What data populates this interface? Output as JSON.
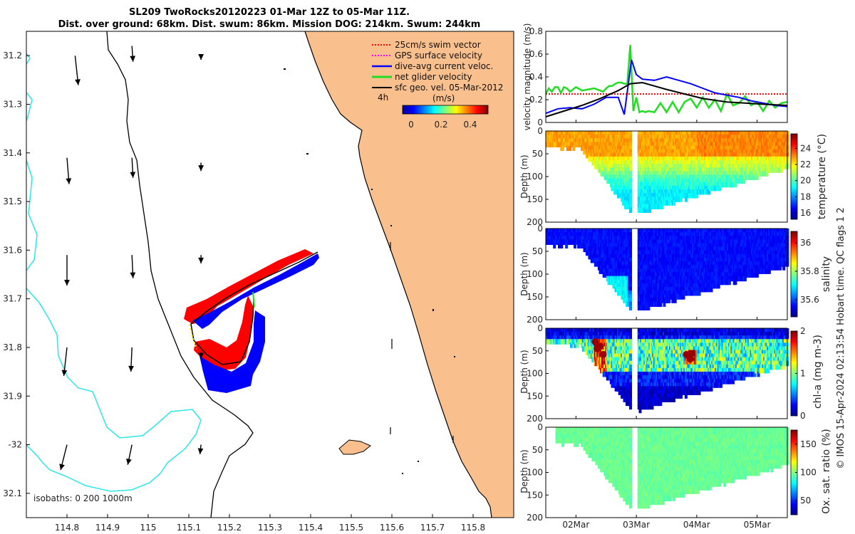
{
  "header": {
    "title_line1": "SL209 TwoRocks20120223 01-Mar 12Z to 05-Mar 11Z.",
    "title_line2": "Dist. over ground: 68km. Dist. swum: 86km. Mission DOG: 214km. Swum: 244km"
  },
  "footer": {
    "credit": "© IMOS 15-Apr-2024 02:13:54 Hobart time. QC flags 1  2"
  },
  "colors": {
    "land": "#f9c08e",
    "isobath": "#2ee6e6",
    "coast": "#000000",
    "track_red": "#ff0000",
    "track_blue": "#0000ff",
    "net_green": "#22dd22"
  },
  "chart_data": [
    {
      "type": "map",
      "xlim": [
        114.7,
        115.9
      ],
      "ylim": [
        -32.15,
        -31.15
      ],
      "x_ticks": [
        114.8,
        114.9,
        115,
        115.1,
        115.2,
        115.3,
        115.4,
        115.5,
        115.6,
        115.7,
        115.8
      ],
      "x_tick_labels": [
        "114.8",
        "114.9",
        "115",
        "115.1",
        "115.2",
        "115.3",
        "115.4",
        "115.5",
        "115.6",
        "115.7",
        "115.8"
      ],
      "y_ticks": [
        -31.2,
        -31.3,
        -31.4,
        -31.5,
        -31.6,
        -31.7,
        -31.8,
        -31.9,
        -32,
        -32.1
      ],
      "y_tick_labels": [
        "31.2",
        "31.3",
        "31.4",
        "31.5",
        "31.6",
        "31.7",
        "31.8",
        "31.9",
        "-32",
        "32.1"
      ],
      "legend": [
        {
          "label": "25cm/s swim vector",
          "color": "#ff0000",
          "style": "dotted"
        },
        {
          "label": "GPS surface velocity",
          "color": "#ff00ff",
          "style": "dotted"
        },
        {
          "label": "dive-avg current veloc.",
          "color": "#0000ff",
          "style": "solid"
        },
        {
          "label": "net glider velocity",
          "color": "#22dd22",
          "style": "solid"
        },
        {
          "label": "sfc geo. vel. 05-Mar-2012",
          "color": "#000000",
          "style": "solid"
        }
      ],
      "time_scale_label": "4h",
      "colorbar": {
        "label": "(m/s)",
        "ticks": [
          "0",
          "0.2",
          "0.4"
        ],
        "range": [
          0,
          0.5
        ]
      },
      "isobaths_label": "isobaths: 0   200   1000m",
      "geo_vectors": [
        {
          "lon": 114.82,
          "lat": -31.2,
          "u": 0.03,
          "v": -0.28
        },
        {
          "lon": 114.96,
          "lat": -31.18,
          "u": 0.01,
          "v": -0.15
        },
        {
          "lon": 115.13,
          "lat": -31.2,
          "u": 0.0,
          "v": -0.04
        },
        {
          "lon": 114.8,
          "lat": -31.41,
          "u": 0.02,
          "v": -0.25
        },
        {
          "lon": 114.96,
          "lat": -31.41,
          "u": 0.01,
          "v": -0.19
        },
        {
          "lon": 115.13,
          "lat": -31.42,
          "u": 0.0,
          "v": -0.08
        },
        {
          "lon": 114.8,
          "lat": -31.61,
          "u": 0.0,
          "v": -0.29
        },
        {
          "lon": 114.96,
          "lat": -31.61,
          "u": 0.01,
          "v": -0.22
        },
        {
          "lon": 115.13,
          "lat": -31.61,
          "u": 0.0,
          "v": -0.08
        },
        {
          "lon": 114.8,
          "lat": -31.8,
          "u": -0.03,
          "v": -0.27
        },
        {
          "lon": 114.96,
          "lat": -31.8,
          "u": -0.01,
          "v": -0.23
        },
        {
          "lon": 115.13,
          "lat": -31.81,
          "u": 0.0,
          "v": -0.06
        },
        {
          "lon": 114.8,
          "lat": -32.0,
          "u": -0.06,
          "v": -0.24
        },
        {
          "lon": 114.96,
          "lat": -32.0,
          "u": -0.04,
          "v": -0.19
        },
        {
          "lon": 115.13,
          "lat": -32.0,
          "u": -0.01,
          "v": -0.09
        }
      ]
    },
    {
      "type": "line",
      "ylabel": "velocity magnitude (m/s)",
      "ylim": [
        0,
        0.8
      ],
      "y_ticks": [
        0,
        0.2,
        0.4,
        0.6,
        0.8
      ],
      "y_tick_labels": [
        "0",
        "0.2",
        "0.4",
        "0.6",
        "0.8"
      ],
      "xlim": [
        0,
        4
      ],
      "x_ticks": [
        0.5,
        1.5,
        2.5,
        3.5
      ],
      "series": [
        {
          "color": "#ff0000",
          "style": "dotted",
          "x": [
            0,
            4
          ],
          "y": [
            0.25,
            0.25
          ]
        },
        {
          "color": "#22dd22",
          "style": "solid",
          "x": [
            0,
            0.05,
            0.1,
            0.15,
            0.2,
            0.25,
            0.3,
            0.35,
            0.4,
            0.5,
            0.6,
            0.7,
            0.8,
            0.9,
            0.95,
            1.0,
            1.05,
            1.1,
            1.15,
            1.2,
            1.25,
            1.3,
            1.35,
            1.4,
            1.45,
            1.5,
            1.55,
            1.6,
            1.65,
            1.7,
            1.8,
            1.9,
            2.0,
            2.1,
            2.2,
            2.3,
            2.4,
            2.5,
            2.6,
            2.7,
            2.8,
            2.9,
            3.0,
            3.1,
            3.2,
            3.3,
            3.4,
            3.5,
            3.6,
            3.7,
            3.8,
            3.9,
            4.0
          ],
          "y": [
            0.25,
            0.3,
            0.27,
            0.31,
            0.31,
            0.26,
            0.31,
            0.3,
            0.27,
            0.31,
            0.28,
            0.29,
            0.3,
            0.28,
            0.27,
            0.3,
            0.32,
            0.32,
            0.34,
            0.35,
            0.35,
            0.34,
            0.34,
            0.68,
            0.1,
            0.22,
            0.09,
            0.1,
            0.09,
            0.1,
            0.09,
            0.17,
            0.09,
            0.18,
            0.09,
            0.18,
            0.21,
            0.13,
            0.22,
            0.13,
            0.2,
            0.1,
            0.25,
            0.15,
            0.17,
            0.23,
            0.15,
            0.18,
            0.1,
            0.19,
            0.13,
            0.17,
            0.18
          ]
        },
        {
          "color": "#0000ff",
          "style": "solid",
          "x": [
            0,
            0.2,
            0.4,
            0.6,
            0.8,
            1.0,
            1.2,
            1.3,
            1.42,
            1.5,
            1.6,
            1.8,
            2.0,
            2.2,
            2.4,
            2.6,
            2.8,
            3.0,
            3.2,
            3.4,
            3.6,
            3.8,
            4.0
          ],
          "y": [
            0.08,
            0.12,
            0.13,
            0.12,
            0.16,
            0.22,
            0.22,
            0.07,
            0.55,
            0.42,
            0.38,
            0.37,
            0.4,
            0.37,
            0.34,
            0.3,
            0.26,
            0.24,
            0.22,
            0.19,
            0.17,
            0.15,
            0.14
          ]
        },
        {
          "color": "#000000",
          "style": "solid",
          "x": [
            0,
            0.3,
            0.6,
            0.9,
            1.2,
            1.4,
            1.6,
            1.8,
            2.0,
            2.3,
            2.6,
            3.0,
            3.3,
            3.6,
            4.0
          ],
          "y": [
            0.05,
            0.1,
            0.15,
            0.21,
            0.28,
            0.34,
            0.35,
            0.32,
            0.29,
            0.25,
            0.21,
            0.18,
            0.17,
            0.16,
            0.15
          ]
        }
      ]
    },
    {
      "type": "heatmap",
      "ylabel": "Depth (m)",
      "ylim": [
        200,
        0
      ],
      "y_ticks": [
        0,
        50,
        100,
        150,
        200
      ],
      "colorbar": {
        "label": "temperature (°C)",
        "range": [
          15.2,
          25.8
        ],
        "ticks": [
          "16",
          "18",
          "20",
          "22",
          "24"
        ],
        "tick_values": [
          16,
          18,
          20,
          22,
          24
        ]
      }
    },
    {
      "type": "heatmap",
      "ylabel": "Depth (m)",
      "ylim": [
        200,
        0
      ],
      "y_ticks": [
        0,
        50,
        100,
        150,
        200
      ],
      "colorbar": {
        "label": "salinity",
        "range": [
          35.48,
          36.08
        ],
        "ticks": [
          "35.6",
          "35.8",
          "36"
        ],
        "tick_values": [
          35.6,
          35.8,
          36.0
        ]
      }
    },
    {
      "type": "heatmap",
      "ylabel": "Depth (m)",
      "ylim": [
        200,
        0
      ],
      "y_ticks": [
        0,
        50,
        100,
        150,
        200
      ],
      "colorbar": {
        "label": "chl-a (mg m-3)",
        "range": [
          0,
          2
        ],
        "ticks": [
          "0",
          "1",
          "2"
        ],
        "tick_values": [
          0,
          1,
          2
        ]
      }
    },
    {
      "type": "heatmap",
      "ylabel": "Depth (m)",
      "ylim": [
        200,
        0
      ],
      "y_ticks": [
        0,
        50,
        100,
        150,
        200
      ],
      "x_ticks": [
        0.5,
        1.5,
        2.5,
        3.5
      ],
      "x_tick_labels": [
        "02Mar",
        "03Mar",
        "04Mar",
        "05Mar"
      ],
      "colorbar": {
        "label": "Ox. sat. ratio (%)",
        "range": [
          25,
          175
        ],
        "ticks": [
          "50",
          "100",
          "150"
        ],
        "tick_values": [
          50,
          100,
          150
        ]
      }
    }
  ]
}
